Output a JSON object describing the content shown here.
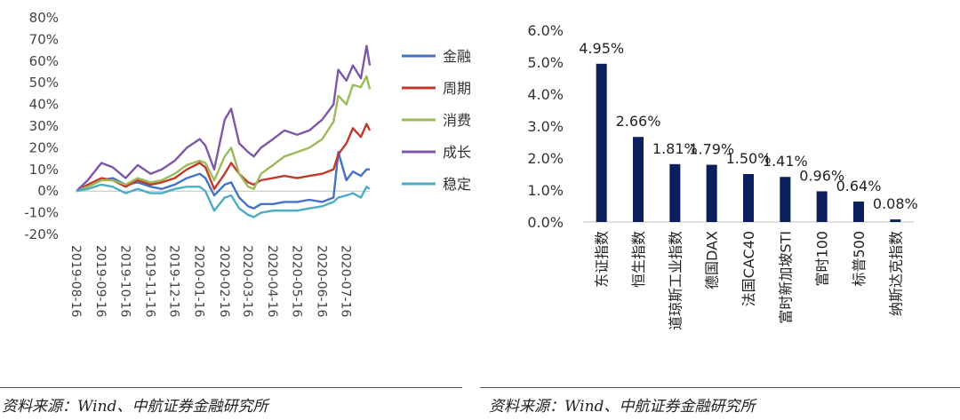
{
  "chart_data": [
    {
      "type": "line",
      "y_ticks": [
        "80%",
        "70%",
        "60%",
        "50%",
        "40%",
        "30%",
        "20%",
        "10%",
        "0%",
        "-10%",
        "-20%"
      ],
      "ylim": [
        -20,
        80
      ],
      "x_ticks": [
        "2019-08-16",
        "2019-09-16",
        "2019-10-16",
        "2019-11-16",
        "2019-12-16",
        "2020-01-16",
        "2020-02-16",
        "2020-03-16",
        "2020-04-16",
        "2020-05-16",
        "2020-06-16",
        "2020-07-16"
      ],
      "x": [
        "2019-08-16",
        "2019-08-30",
        "2019-09-16",
        "2019-09-30",
        "2019-10-16",
        "2019-10-31",
        "2019-11-16",
        "2019-11-30",
        "2019-12-16",
        "2019-12-31",
        "2020-01-16",
        "2020-01-23",
        "2020-02-03",
        "2020-02-16",
        "2020-02-24",
        "2020-03-05",
        "2020-03-16",
        "2020-03-23",
        "2020-04-01",
        "2020-04-16",
        "2020-04-30",
        "2020-05-16",
        "2020-05-31",
        "2020-06-16",
        "2020-06-30",
        "2020-07-06",
        "2020-07-16",
        "2020-07-24",
        "2020-08-03",
        "2020-08-10",
        "2020-08-14"
      ],
      "series": [
        {
          "name": "金融",
          "color": "#4472C4",
          "values": [
            0,
            2,
            5,
            6,
            3,
            4,
            2,
            1,
            3,
            6,
            8,
            6,
            -2,
            3,
            4,
            -3,
            -7,
            -8,
            -6,
            -6,
            -5,
            -5,
            -4,
            -5,
            -3,
            18,
            5,
            9,
            7,
            10,
            10
          ]
        },
        {
          "name": "周期",
          "color": "#C0392B",
          "values": [
            0,
            3,
            6,
            5,
            2,
            5,
            3,
            4,
            6,
            10,
            13,
            11,
            1,
            8,
            13,
            8,
            4,
            3,
            5,
            6,
            7,
            6,
            7,
            8,
            10,
            17,
            22,
            29,
            25,
            31,
            28
          ]
        },
        {
          "name": "消费",
          "color": "#9BBB59",
          "values": [
            0,
            2,
            5,
            5,
            3,
            6,
            4,
            5,
            8,
            12,
            14,
            13,
            5,
            16,
            20,
            8,
            2,
            1,
            8,
            12,
            16,
            18,
            20,
            24,
            32,
            44,
            40,
            49,
            48,
            53,
            47
          ]
        },
        {
          "name": "成长",
          "color": "#7E57A8",
          "values": [
            0,
            5,
            13,
            11,
            6,
            12,
            8,
            10,
            14,
            20,
            24,
            21,
            10,
            33,
            38,
            22,
            18,
            16,
            20,
            24,
            28,
            26,
            28,
            33,
            40,
            56,
            51,
            58,
            52,
            67,
            58
          ]
        },
        {
          "name": "稳定",
          "color": "#4BACC6",
          "values": [
            0,
            1,
            3,
            2,
            -1,
            1,
            -1,
            -1,
            1,
            2,
            2,
            0,
            -9,
            -3,
            -2,
            -8,
            -11,
            -12,
            -10,
            -9,
            -9,
            -9,
            -8,
            -7,
            -5,
            -3,
            -2,
            -1,
            -3,
            2,
            1
          ]
        }
      ]
    },
    {
      "type": "bar",
      "color": "#0B1F5C",
      "categories": [
        "东证指数",
        "恒生指数",
        "道琼斯工业指数",
        "德国DAX",
        "法国CAC40",
        "富时新加坡STI",
        "富时100",
        "标普500",
        "纳斯达克指数"
      ],
      "values": [
        4.95,
        2.66,
        1.81,
        1.79,
        1.5,
        1.41,
        0.96,
        0.64,
        0.08
      ],
      "data_labels": [
        "4.95%",
        "2.66%",
        "1.81%",
        "1.79%",
        "1.50%",
        "1.41%",
        "0.96%",
        "0.64%",
        "0.08%"
      ],
      "y_ticks": [
        "6.0%",
        "5.0%",
        "4.0%",
        "3.0%",
        "2.0%",
        "1.0%",
        "0.0%"
      ],
      "ylim": [
        0,
        6
      ]
    }
  ],
  "sources": {
    "left": "资料来源：Wind、中航证券金融研究所",
    "right": "资料来源：Wind、中航证券金融研究所"
  }
}
